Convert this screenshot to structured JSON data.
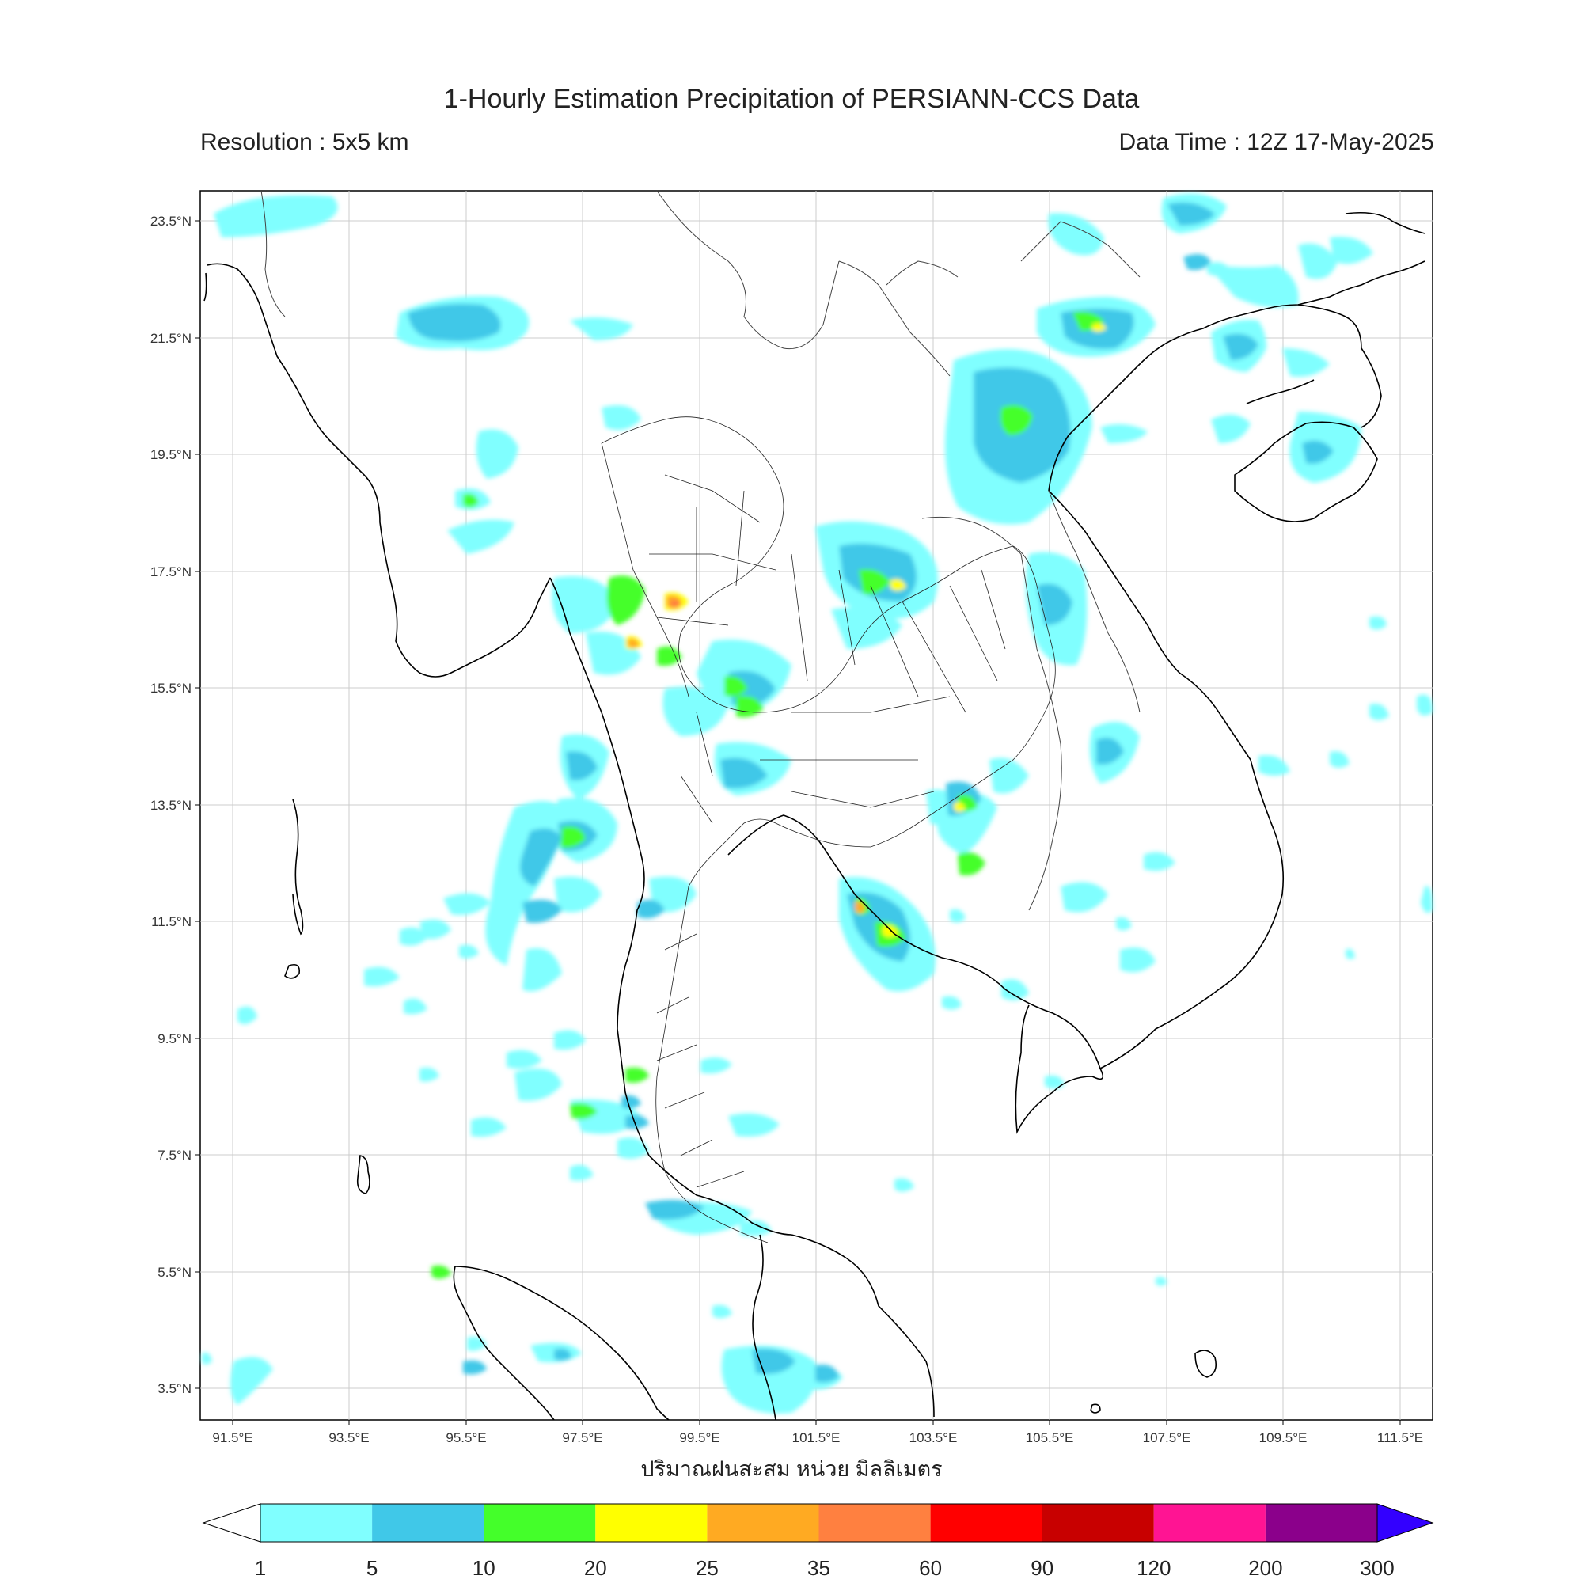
{
  "title": "1-Hourly Estimation Precipitation of PERSIANN-CCS Data",
  "resolution": "Resolution : 5x5 km",
  "data_time": "Data Time : 12Z 17-May-2025",
  "map": {
    "lat_ticks": [
      "23.5°N",
      "21.5°N",
      "19.5°N",
      "17.5°N",
      "15.5°N",
      "13.5°N",
      "11.5°N",
      "9.5°N",
      "7.5°N",
      "5.5°N",
      "3.5°N"
    ],
    "lon_ticks": [
      "91.5°E",
      "93.5°E",
      "95.5°E",
      "97.5°E",
      "99.5°E",
      "101.5°E",
      "103.5°E",
      "105.5°E",
      "107.5°E",
      "109.5°E",
      "111.5°E"
    ],
    "xlabel": "ปริมาณฝนสะสม หน่วย มิลลิเมตร"
  },
  "colorbar": {
    "ticks": [
      "1",
      "5",
      "10",
      "20",
      "25",
      "35",
      "60",
      "90",
      "120",
      "200",
      "300"
    ],
    "colors": [
      "#80ffff",
      "#40c8e8",
      "#44ff2a",
      "#ffff00",
      "#ffaa22",
      "#ff8040",
      "#ff0000",
      "#c80000",
      "#ff1493",
      "#8b008b",
      "#3300ff"
    ]
  }
}
